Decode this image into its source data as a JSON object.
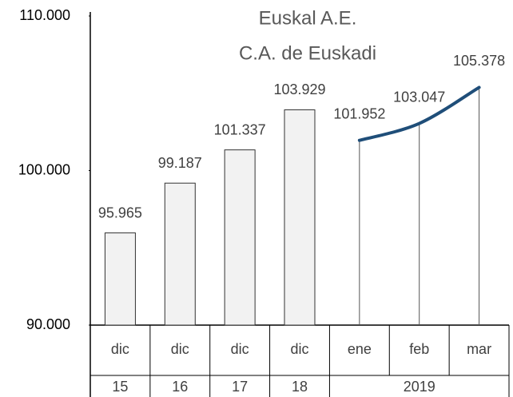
{
  "chart_data": {
    "type": "bar-line",
    "title": [
      "Euskal A.E.",
      "C.A. de Euskadi"
    ],
    "category_groups": [
      {
        "name": "15",
        "categories": [
          "dic"
        ]
      },
      {
        "name": "16",
        "categories": [
          "dic"
        ]
      },
      {
        "name": "17",
        "categories": [
          "dic"
        ]
      },
      {
        "name": "18",
        "categories": [
          "dic"
        ]
      },
      {
        "name": "2019",
        "categories": [
          "ene",
          "feb",
          "mar"
        ]
      }
    ],
    "series": [
      {
        "type": "bar",
        "color": "#f2f2f2",
        "values": [
          95965,
          99187,
          101337,
          103929,
          null,
          null,
          null
        ],
        "value_labels": [
          "95.965",
          "99.187",
          "101.337",
          "103.929",
          null,
          null,
          null
        ]
      },
      {
        "type": "line",
        "color": "#1f4e79",
        "values": [
          null,
          null,
          null,
          null,
          101952,
          103047,
          105378
        ],
        "value_labels": [
          null,
          null,
          null,
          null,
          "101.952",
          "103.047",
          "105.378"
        ]
      }
    ],
    "ylim": [
      90000,
      110000
    ],
    "yticks": [
      {
        "value": 90000,
        "label": "90.000"
      },
      {
        "value": 100000,
        "label": "100.000"
      },
      {
        "value": 110000,
        "label": "110.000"
      }
    ]
  }
}
